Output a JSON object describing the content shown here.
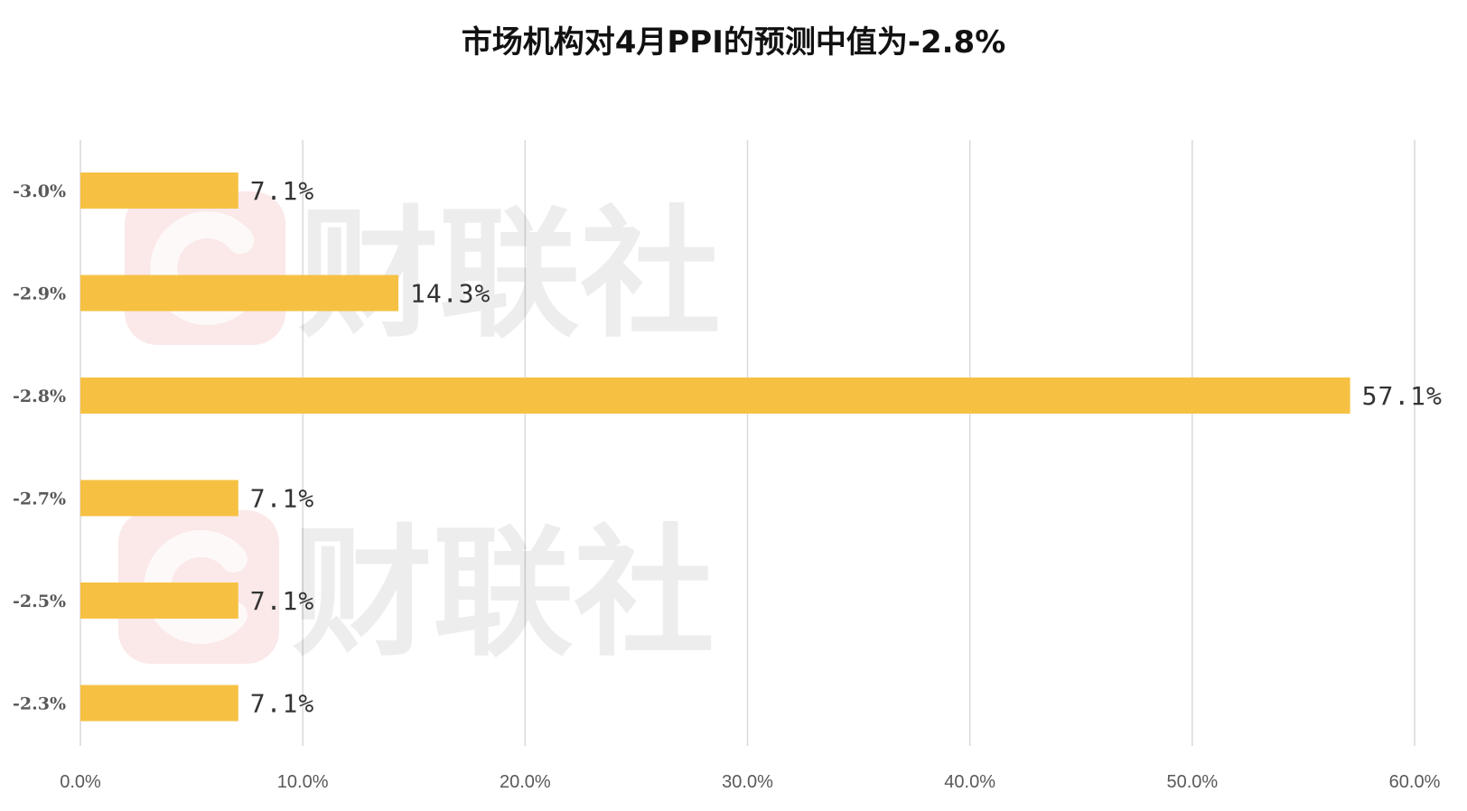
{
  "watermark": {
    "brand_text": "财联社",
    "logo_icon": "cls-logo-icon"
  },
  "chart_data": {
    "type": "bar",
    "orientation": "horizontal",
    "title": "市场机构对4月PPI的预测中值为-2.8%",
    "categories": [
      "-3.0%",
      "-2.9%",
      "-2.8%",
      "-2.7%",
      "-2.5%",
      "-2.3%"
    ],
    "values": [
      7.1,
      14.3,
      57.1,
      7.1,
      7.1,
      7.1
    ],
    "data_labels": [
      "7.1%",
      "14.3%",
      "57.1%",
      "7.1%",
      "7.1%",
      "7.1%"
    ],
    "x_ticks": [
      "0.0%",
      "10.0%",
      "20.0%",
      "30.0%",
      "40.0%",
      "50.0%",
      "60.0%"
    ],
    "xlim": [
      0,
      60
    ],
    "xlabel": "",
    "ylabel": "",
    "grid": "vertical",
    "legend": "none",
    "colors": {
      "bar": "#F6C142",
      "grid": "#D9D9D9",
      "watermark_logo": "#E8736E"
    }
  }
}
